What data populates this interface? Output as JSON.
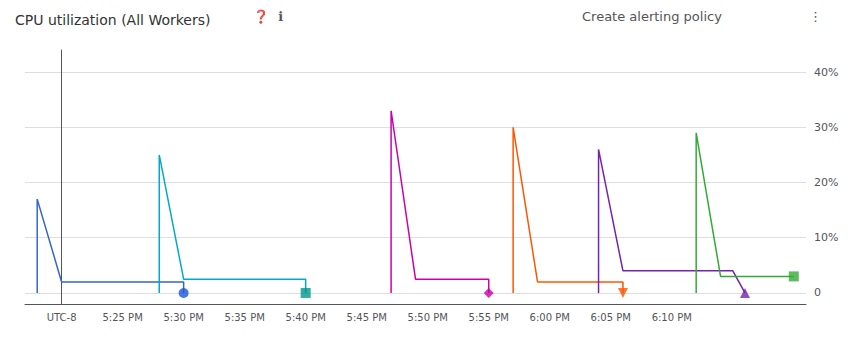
{
  "chart_data": {
    "type": "line",
    "title": "CPU utilization (All Workers)",
    "annotations": [
      "❓",
      "ℹ",
      "Create alerting policy",
      "⋮"
    ],
    "xlim": [
      -3,
      61
    ],
    "xticks": [
      {
        "value": 0,
        "label": "UTC-8"
      },
      {
        "value": 5,
        "label": "5:25 PM"
      },
      {
        "value": 10,
        "label": "5:30 PM"
      },
      {
        "value": 15,
        "label": "5:35 PM"
      },
      {
        "value": 20,
        "label": "5:40 PM"
      },
      {
        "value": 25,
        "label": "5:45 PM"
      },
      {
        "value": 30,
        "label": "5:50 PM"
      },
      {
        "value": 35,
        "label": "5:55 PM"
      },
      {
        "value": 40,
        "label": "6:00 PM"
      },
      {
        "value": 45,
        "label": "6:05 PM"
      },
      {
        "value": 50,
        "label": "6:10 PM"
      }
    ],
    "ylim": [
      -2,
      44
    ],
    "yticks": [
      0,
      {
        "value": 10,
        "label": "10%"
      },
      {
        "value": 20,
        "label": "20%"
      },
      {
        "value": 30,
        "label": "30%"
      },
      {
        "value": 40,
        "label": "40%"
      }
    ],
    "grid": true,
    "series": [
      {
        "type": "line",
        "color": "#3366cc",
        "x": [
          -2,
          -2,
          0,
          10,
          10,
          10
        ],
        "values": [
          0,
          17,
          2,
          2,
          2,
          0
        ]
      },
      {
        "type": "scatter",
        "color": "#1a56db",
        "marker": "circle",
        "x": [
          10
        ],
        "values": [
          0
        ]
      },
      {
        "type": "line",
        "color": "#00aacc",
        "x": [
          8,
          8,
          10,
          20,
          20,
          20
        ],
        "values": [
          0,
          25,
          2.5,
          2.5,
          2.5,
          0
        ]
      },
      {
        "type": "scatter",
        "color": "#009688",
        "marker": "square",
        "x": [
          20
        ],
        "values": [
          0
        ]
      },
      {
        "type": "line",
        "color": "#cc00aa",
        "x": [
          27,
          27,
          29,
          35,
          35,
          35
        ],
        "values": [
          0,
          33,
          2.5,
          2.5,
          2.5,
          0
        ]
      },
      {
        "type": "scatter",
        "color": "#cc00aa",
        "marker": "diamond",
        "x": [
          35
        ],
        "values": [
          0
        ]
      },
      {
        "type": "line",
        "color": "#ff5500",
        "x": [
          37,
          37,
          39,
          46,
          46,
          46
        ],
        "values": [
          0,
          30,
          2,
          2,
          2,
          0
        ]
      },
      {
        "type": "scatter",
        "color": "#ff5500",
        "marker": "triangle-down",
        "x": [
          46
        ],
        "values": [
          0
        ]
      },
      {
        "type": "line",
        "color": "#7722aa",
        "x": [
          44,
          44,
          46,
          55,
          55,
          56
        ],
        "values": [
          0,
          26,
          4,
          4,
          4,
          0
        ]
      },
      {
        "type": "scatter",
        "color": "#7722aa",
        "marker": "triangle-up",
        "x": [
          56
        ],
        "values": [
          0
        ]
      },
      {
        "type": "line",
        "color": "#33aa33",
        "x": [
          52,
          52,
          54,
          59,
          60
        ],
        "values": [
          0,
          29,
          3,
          3,
          3
        ]
      },
      {
        "type": "scatter",
        "color": "#33aa33",
        "marker": "square",
        "x": [
          60
        ],
        "values": [
          3
        ]
      }
    ]
  }
}
